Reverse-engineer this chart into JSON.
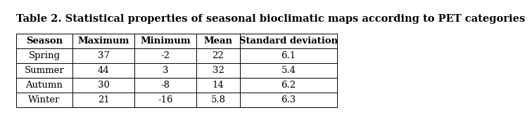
{
  "title": "Table 2. Statistical properties of seasonal bioclimatic maps according to PET categories",
  "columns": [
    "Season",
    "Maximum",
    "Minimum",
    "Mean",
    "Standard deviation"
  ],
  "rows": [
    [
      "Spring",
      "37",
      "-2",
      "22",
      "6.1"
    ],
    [
      "Summer",
      "44",
      "3",
      "32",
      "5.4"
    ],
    [
      "Autumn",
      "30",
      "-8",
      "14",
      "6.2"
    ],
    [
      "Winter",
      "21",
      "-16",
      "5.8",
      "6.3"
    ]
  ],
  "title_fontsize": 10.5,
  "table_fontsize": 9.5,
  "title_color": "#000000",
  "border_color": "#000000",
  "text_color": "#000000",
  "fig_width": 6.66,
  "fig_height": 1.64
}
